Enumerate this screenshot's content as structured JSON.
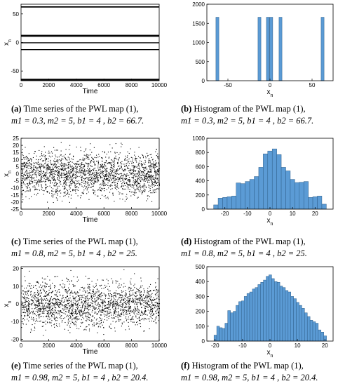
{
  "chart_data": [
    {
      "id": "a",
      "type": "scatter",
      "xlabel": "Time",
      "ylabel": "x_n",
      "xlim": [
        0,
        10000
      ],
      "ylim": [
        -67,
        67
      ],
      "xticks": [
        "0",
        "2000",
        "4000",
        "6000",
        "8000",
        "10000"
      ],
      "yticks": [
        "50",
        "0",
        "-50"
      ],
      "levels": [
        62.5,
        62,
        12.5,
        10.5,
        -0.5,
        -12.5,
        -64.5,
        -66
      ],
      "caption_label": "(a)",
      "caption_lines": [
        "Time series of the PWL map (1),",
        "m1 = 0.3, m2 = 5, b1 = 4 , b2 = 66.7."
      ]
    },
    {
      "id": "b",
      "type": "bar",
      "xlabel": "x_n",
      "xlim": [
        -75,
        75
      ],
      "ylim": [
        0,
        2000
      ],
      "xticks": [
        "-50",
        "0",
        "50"
      ],
      "yticks": [
        "2000",
        "1500",
        "1000",
        "500",
        "0"
      ],
      "bar_width": 3.5,
      "bars": [
        {
          "x": -62.5,
          "value": 1660
        },
        {
          "x": -12.5,
          "value": 1660
        },
        {
          "x": -2.5,
          "value": 1660
        },
        {
          "x": 1.5,
          "value": 1660
        },
        {
          "x": 12.5,
          "value": 1660
        },
        {
          "x": 62.5,
          "value": 1660
        }
      ],
      "caption_label": "(b)",
      "caption_lines": [
        "Histogram of the PWL map (1),",
        "m1 = 0.3, m2 = 5, b1 = 4 , b2 = 66.7."
      ]
    },
    {
      "id": "c",
      "type": "scatter",
      "xlabel": "Time",
      "ylabel": "x_n",
      "xlim": [
        0,
        10000
      ],
      "ylim": [
        -25,
        25
      ],
      "xticks": [
        "0",
        "2000",
        "4000",
        "6000",
        "8000",
        "10000"
      ],
      "yticks": [
        "25",
        "20",
        "15",
        "10",
        "5",
        "0",
        "-5",
        "-10",
        "-15",
        "-20",
        "-25"
      ],
      "points": 2200,
      "caption_label": "(c)",
      "caption_lines": [
        "Time series of the PWL map (1),",
        "m1 = 0.8, m2 = 5, b1 = 4 , b2 = 25."
      ]
    },
    {
      "id": "d",
      "type": "bar",
      "xlabel": "x_n",
      "xlim": [
        -28,
        28
      ],
      "ylim": [
        0,
        1000
      ],
      "xticks": [
        "-20",
        "-10",
        "0",
        "10",
        "20"
      ],
      "yticks": [
        "1000",
        "800",
        "600",
        "400",
        "200",
        "0"
      ],
      "bin_start": -25,
      "bin_width": 2,
      "values": [
        60,
        155,
        165,
        175,
        185,
        370,
        360,
        390,
        420,
        460,
        590,
        780,
        820,
        850,
        770,
        590,
        540,
        420,
        375,
        380,
        390,
        165,
        175,
        185,
        70
      ],
      "caption_label": "(d)",
      "caption_lines": [
        "Histogram of the PWL map (1),",
        "m1 = 0.8, m2 = 5, b1 = 4 , b2 = 25."
      ]
    },
    {
      "id": "e",
      "type": "scatter",
      "xlabel": "Time",
      "ylabel": "x_n",
      "xlim": [
        0,
        10000
      ],
      "ylim": [
        -21,
        21
      ],
      "xticks": [
        "0",
        "2000",
        "4000",
        "6000",
        "8000",
        "10000"
      ],
      "yticks": [
        "20",
        "10",
        "0",
        "-10",
        "-20"
      ],
      "points": 2000,
      "caption_label": "(e)",
      "caption_lines": [
        "Time series of the PWL map (1),",
        "m1 = 0.98, m2 = 5, b1 = 4 , b2 = 20.4."
      ]
    },
    {
      "id": "f",
      "type": "bar",
      "xlabel": "x_n",
      "xlim": [
        -23,
        23
      ],
      "ylim": [
        0,
        500
      ],
      "xticks": [
        "-20",
        "-10",
        "0",
        "10",
        "20"
      ],
      "yticks": [
        "500",
        "400",
        "300",
        "200",
        "100",
        "0"
      ],
      "bin_start": -20.4,
      "bin_width": 1,
      "values": [
        40,
        100,
        90,
        85,
        120,
        205,
        190,
        200,
        240,
        265,
        270,
        300,
        320,
        330,
        350,
        360,
        380,
        395,
        410,
        435,
        445,
        420,
        400,
        395,
        370,
        360,
        340,
        330,
        300,
        285,
        260,
        240,
        220,
        190,
        165,
        140,
        130,
        120,
        75,
        60,
        35
      ],
      "caption_label": "(f)",
      "caption_lines": [
        "Histogram of the PWL map (1),",
        "m1 = 0.98, m2 = 5, b1 = 4 , b2 = 20.4."
      ]
    }
  ],
  "style": {
    "bar_fill": "#5b9bd5",
    "bar_stroke": "#2f5f8a",
    "axis_color": "#000000"
  }
}
